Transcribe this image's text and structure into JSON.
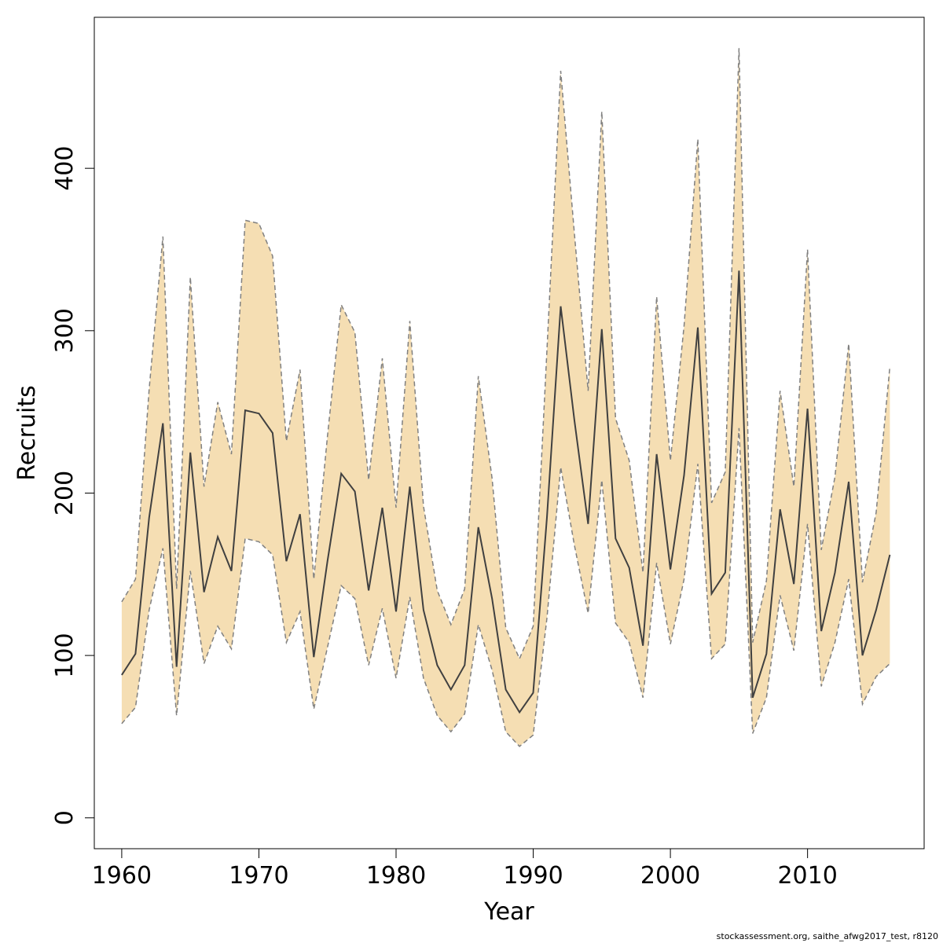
{
  "chart_data": {
    "type": "line",
    "title": "",
    "xlabel": "Year",
    "ylabel": "Recruits",
    "xlim": [
      1958,
      2018.5
    ],
    "ylim": [
      -19,
      493
    ],
    "xticks": [
      1960,
      1970,
      1980,
      1990,
      2000,
      2010
    ],
    "yticks": [
      0,
      100,
      200,
      300,
      400
    ],
    "colors": {
      "band": "#F5DEB3",
      "band_edge": "#808080",
      "line": "#404040",
      "frame": "#000000"
    },
    "x": [
      1960,
      1961,
      1962,
      1963,
      1964,
      1965,
      1966,
      1967,
      1968,
      1969,
      1970,
      1971,
      1972,
      1973,
      1974,
      1975,
      1976,
      1977,
      1978,
      1979,
      1980,
      1981,
      1982,
      1983,
      1984,
      1985,
      1986,
      1987,
      1988,
      1989,
      1990,
      1991,
      1992,
      1993,
      1994,
      1995,
      1996,
      1997,
      1998,
      1999,
      2000,
      2001,
      2002,
      2003,
      2004,
      2005,
      2006,
      2007,
      2008,
      2009,
      2010,
      2011,
      2012,
      2013,
      2014,
      2015,
      2016
    ],
    "series": [
      {
        "name": "Recruits (estimate)",
        "values": [
          88,
          101,
          185,
          243,
          93,
          225,
          139,
          173,
          152,
          251,
          249,
          237,
          158,
          187,
          99,
          158,
          212,
          201,
          140,
          191,
          127,
          204,
          128,
          94,
          79,
          94,
          179,
          135,
          79,
          65,
          77,
          185,
          315,
          245,
          181,
          301,
          172,
          154,
          106,
          224,
          153,
          211,
          302,
          138,
          151,
          337,
          74,
          101,
          190,
          144,
          252,
          115,
          151,
          207,
          100,
          128,
          162
        ]
      },
      {
        "name": "Upper bound",
        "values": [
          133,
          147,
          264,
          358,
          141,
          333,
          204,
          256,
          224,
          368,
          366,
          346,
          232,
          276,
          147,
          235,
          316,
          299,
          208,
          283,
          191,
          306,
          192,
          140,
          119,
          141,
          272,
          209,
          117,
          98,
          118,
          288,
          460,
          360,
          263,
          435,
          246,
          220,
          151,
          321,
          220,
          303,
          418,
          194,
          213,
          474,
          108,
          146,
          263,
          204,
          350,
          165,
          210,
          292,
          145,
          188,
          278
        ]
      },
      {
        "name": "Lower bound",
        "values": [
          58,
          68,
          128,
          166,
          63,
          152,
          95,
          118,
          104,
          172,
          170,
          162,
          108,
          127,
          67,
          105,
          143,
          135,
          94,
          129,
          86,
          136,
          86,
          63,
          53,
          64,
          119,
          91,
          53,
          44,
          51,
          123,
          216,
          168,
          126,
          208,
          120,
          108,
          74,
          157,
          107,
          147,
          218,
          98,
          107,
          240,
          52,
          74,
          137,
          103,
          181,
          81,
          108,
          147,
          70,
          87,
          95
        ]
      }
    ],
    "footer": "stockassessment.org, saithe_afwg2017_test, r8120"
  }
}
